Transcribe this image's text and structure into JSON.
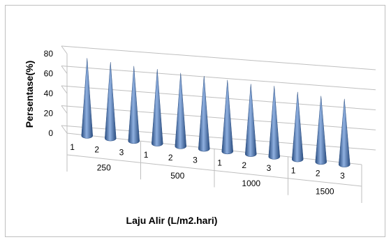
{
  "chart_data": {
    "type": "bar",
    "shape": "3d-cone",
    "xlabel": "Laju Alir (L/m2.hari)",
    "ylabel": "Persentase(%)",
    "yticks": [
      0,
      20,
      40,
      60,
      80
    ],
    "ylim": [
      0,
      80
    ],
    "grid": true,
    "groups": [
      {
        "label": "250",
        "subcategories": [
          "1",
          "2",
          "3"
        ]
      },
      {
        "label": "500",
        "subcategories": [
          "1",
          "2",
          "3"
        ]
      },
      {
        "label": "1000",
        "subcategories": [
          "1",
          "2",
          "3"
        ]
      },
      {
        "label": "1500",
        "subcategories": [
          "1",
          "2",
          "3"
        ]
      }
    ],
    "series": [
      {
        "values": [
          80,
          78,
          76,
          75,
          73,
          72,
          70,
          68,
          68,
          64,
          62,
          61
        ]
      }
    ],
    "colors": {
      "cone_light": "#8fb0e0",
      "cone_mid": "#4f81bd",
      "cone_dark": "#2a4d80",
      "grid": "#bfbfbf"
    }
  }
}
